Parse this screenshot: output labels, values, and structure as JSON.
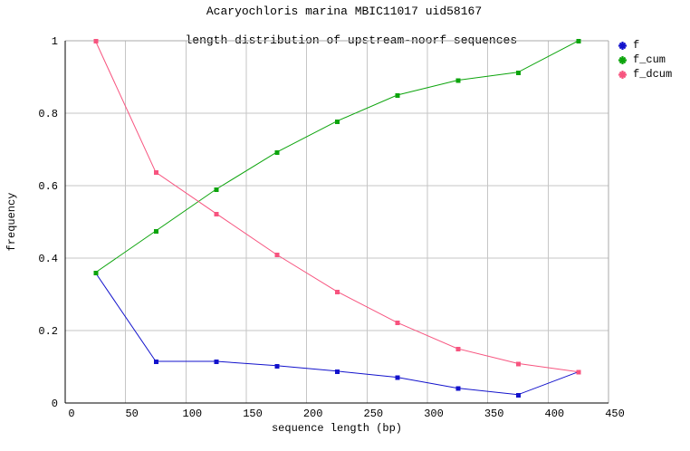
{
  "title": {
    "line1": "Acaryochloris marina MBIC11017 uid58167",
    "line2": "length distribution of upstream-noorf sequences"
  },
  "axes": {
    "x_label": "sequence length (bp)",
    "y_label": "frequency"
  },
  "colors": {
    "series_f": "#1212cc",
    "series_f_cum": "#0ca40c",
    "series_f_dcum": "#f7547f",
    "gridline": "#c6c6c6",
    "border_light": "#aaaaaa",
    "axis": "#000000",
    "background": "#ffffff"
  },
  "chart_data": {
    "type": "line",
    "title": "Acaryochloris marina MBIC11017 uid58167",
    "subtitle": "length distribution of upstream-noorf sequences",
    "xlabel": "sequence length (bp)",
    "ylabel": "frequency",
    "x": [
      25,
      75,
      125,
      175,
      225,
      275,
      325,
      375,
      425
    ],
    "series": [
      {
        "name": "f",
        "color": "#1212cc",
        "marker": "square",
        "values": [
          0.36,
          0.115,
          0.115,
          0.103,
          0.088,
          0.071,
          0.041,
          0.023,
          0.086
        ]
      },
      {
        "name": "f_cum",
        "color": "#0ca40c",
        "marker": "square",
        "values": [
          0.36,
          0.475,
          0.59,
          0.692,
          0.778,
          0.85,
          0.891,
          0.913,
          1.0
        ]
      },
      {
        "name": "f_dcum",
        "color": "#f7547f",
        "marker": "square",
        "values": [
          1.0,
          0.637,
          0.523,
          0.41,
          0.308,
          0.222,
          0.15,
          0.109,
          0.086
        ]
      }
    ],
    "xlim": [
      0,
      450
    ],
    "ylim": [
      0,
      1
    ],
    "x_ticks": [
      0,
      50,
      100,
      150,
      200,
      250,
      300,
      350,
      400,
      450
    ],
    "y_ticks": [
      0,
      0.2,
      0.4,
      0.6,
      0.8,
      1
    ],
    "y_tick_labels": [
      "0",
      "0.2",
      "0.4",
      "0.6",
      "0.8",
      "1"
    ],
    "grid": true,
    "legend_position": "outside-top-right"
  }
}
